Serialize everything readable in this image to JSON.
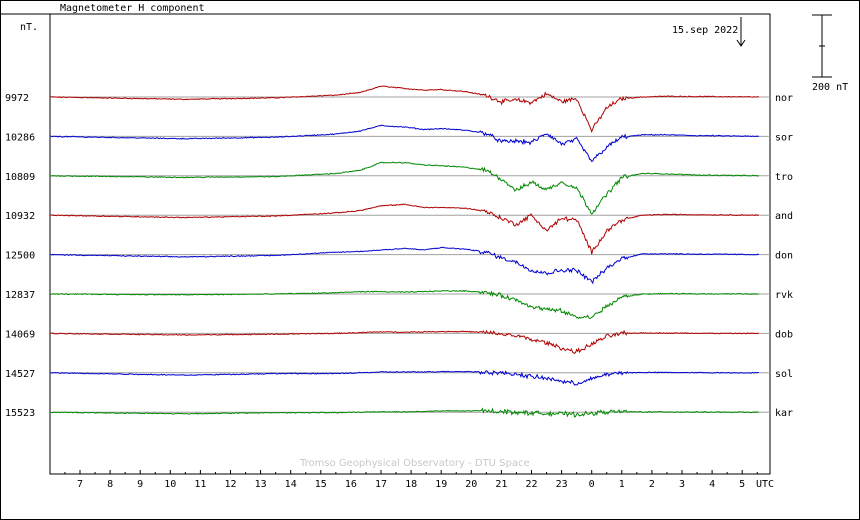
{
  "chart_data": {
    "type": "line",
    "title": "Magnetometer H component",
    "ylabel": "nT.",
    "date_label": "15.sep 2022",
    "scale_bar_label": "200 nT",
    "scale_bar_nT": 200,
    "credit": "Tromso Geophysical Observatory - DTU Space",
    "x_unit_label": "UTC",
    "x_range_hours": [
      6.0,
      29.6
    ],
    "x_ticks": [
      {
        "label": "7",
        "hour": 7
      },
      {
        "label": "8",
        "hour": 8
      },
      {
        "label": "9",
        "hour": 9
      },
      {
        "label": "10",
        "hour": 10
      },
      {
        "label": "11",
        "hour": 11
      },
      {
        "label": "12",
        "hour": 12
      },
      {
        "label": "13",
        "hour": 13
      },
      {
        "label": "14",
        "hour": 14
      },
      {
        "label": "15",
        "hour": 15
      },
      {
        "label": "16",
        "hour": 16
      },
      {
        "label": "17",
        "hour": 17
      },
      {
        "label": "18",
        "hour": 18
      },
      {
        "label": "19",
        "hour": 19
      },
      {
        "label": "20",
        "hour": 20
      },
      {
        "label": "21",
        "hour": 21
      },
      {
        "label": "22",
        "hour": 22
      },
      {
        "label": "23",
        "hour": 23
      },
      {
        "label": "0",
        "hour": 24
      },
      {
        "label": "1",
        "hour": 25
      },
      {
        "label": "2",
        "hour": 26
      },
      {
        "label": "3",
        "hour": 27
      },
      {
        "label": "4",
        "hour": 28
      },
      {
        "label": "5",
        "hour": 29
      }
    ],
    "grid": "horizontal baselines per station",
    "colors": {
      "red": "#b00000",
      "blue": "#0000d0",
      "green": "#008800",
      "baseline": "#a0a0a0"
    },
    "series_hours": [
      6.0,
      10.5,
      13.5,
      15.5,
      16.3,
      17.0,
      17.8,
      18.4,
      19.0,
      19.8,
      20.5,
      21.0,
      21.5,
      22.0,
      22.5,
      23.0,
      23.5,
      24.0,
      24.5,
      25.0,
      25.7,
      26.5,
      27.5,
      28.5,
      29.5
    ],
    "series": [
      {
        "name": "nor",
        "baseline": 9972,
        "color": "red",
        "values": [
          0,
          -15,
          -5,
          12,
          28,
          70,
          55,
          45,
          48,
          35,
          10,
          -30,
          -20,
          -35,
          20,
          -30,
          -10,
          -215,
          -70,
          -10,
          0,
          5,
          3,
          2,
          0
        ]
      },
      {
        "name": "sor",
        "baseline": 10286,
        "color": "blue",
        "values": [
          0,
          -15,
          -5,
          15,
          35,
          70,
          60,
          45,
          50,
          40,
          20,
          -35,
          -30,
          -40,
          20,
          -50,
          -20,
          -160,
          -70,
          -5,
          10,
          10,
          5,
          3,
          0
        ]
      },
      {
        "name": "tro",
        "baseline": 10809,
        "color": "green",
        "values": [
          0,
          -10,
          -5,
          15,
          35,
          85,
          85,
          70,
          65,
          55,
          35,
          -20,
          -95,
          -40,
          -90,
          -40,
          -80,
          -240,
          -120,
          -10,
          15,
          12,
          5,
          3,
          0
        ]
      },
      {
        "name": "and",
        "baseline": 10932,
        "color": "red",
        "values": [
          0,
          -15,
          -5,
          15,
          30,
          60,
          70,
          50,
          50,
          45,
          25,
          -20,
          -60,
          0,
          -100,
          -20,
          -30,
          -240,
          -100,
          -30,
          0,
          5,
          3,
          2,
          0
        ]
      },
      {
        "name": "don",
        "baseline": 12500,
        "color": "blue",
        "values": [
          0,
          -15,
          -5,
          15,
          20,
          30,
          40,
          30,
          45,
          35,
          15,
          -20,
          -50,
          -100,
          -120,
          -100,
          -100,
          -175,
          -90,
          -25,
          5,
          5,
          3,
          2,
          0
        ]
      },
      {
        "name": "rvk",
        "baseline": 12837,
        "color": "green",
        "values": [
          0,
          -5,
          0,
          8,
          15,
          15,
          12,
          15,
          20,
          20,
          10,
          -10,
          -40,
          -80,
          -100,
          -110,
          -150,
          -150,
          -80,
          -20,
          0,
          2,
          1,
          1,
          0
        ]
      },
      {
        "name": "dob",
        "baseline": 14069,
        "color": "red",
        "values": [
          0,
          -10,
          -5,
          0,
          5,
          10,
          8,
          10,
          12,
          12,
          5,
          -5,
          -15,
          -40,
          -60,
          -95,
          -120,
          -70,
          -20,
          0,
          3,
          2,
          1,
          0,
          0
        ]
      },
      {
        "name": "sol",
        "baseline": 14527,
        "color": "blue",
        "values": [
          0,
          -15,
          -5,
          -5,
          0,
          5,
          5,
          5,
          8,
          8,
          5,
          -3,
          -8,
          -25,
          -35,
          -55,
          -70,
          -40,
          -10,
          0,
          2,
          2,
          1,
          0,
          0
        ]
      },
      {
        "name": "kar",
        "baseline": 15523,
        "color": "green",
        "values": [
          0,
          -10,
          -3,
          -3,
          0,
          3,
          2,
          5,
          8,
          8,
          10,
          5,
          0,
          -5,
          -8,
          -10,
          -15,
          -8,
          2,
          3,
          2,
          2,
          1,
          0,
          0
        ]
      }
    ]
  }
}
